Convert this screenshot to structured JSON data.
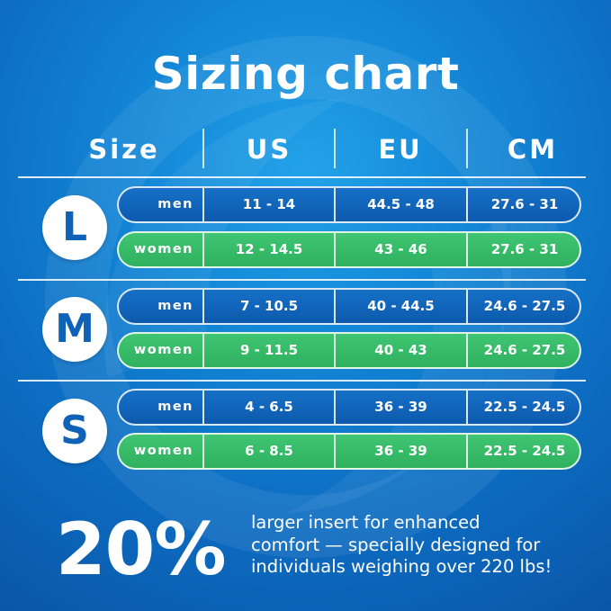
{
  "title": "Sizing chart",
  "colors": {
    "background_top": "#22a2e8",
    "background_bottom": "#0a56a8",
    "men_row": "#0d5aae",
    "women_row": "#35b864",
    "badge_text": "#0e63b8",
    "text": "#ffffff"
  },
  "chart_data": {
    "type": "table",
    "title": "Sizing chart",
    "columns": [
      "Size",
      "US",
      "EU",
      "CM"
    ],
    "groups": [
      {
        "size": "L",
        "rows": [
          {
            "gender": "men",
            "us": "11 - 14",
            "eu": "44.5 - 48",
            "cm": "27.6 - 31"
          },
          {
            "gender": "women",
            "us": "12 - 14.5",
            "eu": "43 - 46",
            "cm": "27.6 - 31"
          }
        ]
      },
      {
        "size": "M",
        "rows": [
          {
            "gender": "men",
            "us": "7 - 10.5",
            "eu": "40 - 44.5",
            "cm": "24.6 - 27.5"
          },
          {
            "gender": "women",
            "us": "9 - 11.5",
            "eu": "40 - 43",
            "cm": "24.6 - 27.5"
          }
        ]
      },
      {
        "size": "S",
        "rows": [
          {
            "gender": "men",
            "us": "4 - 6.5",
            "eu": "36 - 39",
            "cm": "22.5 - 24.5"
          },
          {
            "gender": "women",
            "us": "6 - 8.5",
            "eu": "36 - 39",
            "cm": "22.5 - 24.5"
          }
        ]
      }
    ]
  },
  "promo": {
    "highlight": "20%",
    "lines": [
      "larger insert for enhanced",
      "comfort — specially designed for",
      "individuals weighing over 220 lbs!"
    ]
  }
}
